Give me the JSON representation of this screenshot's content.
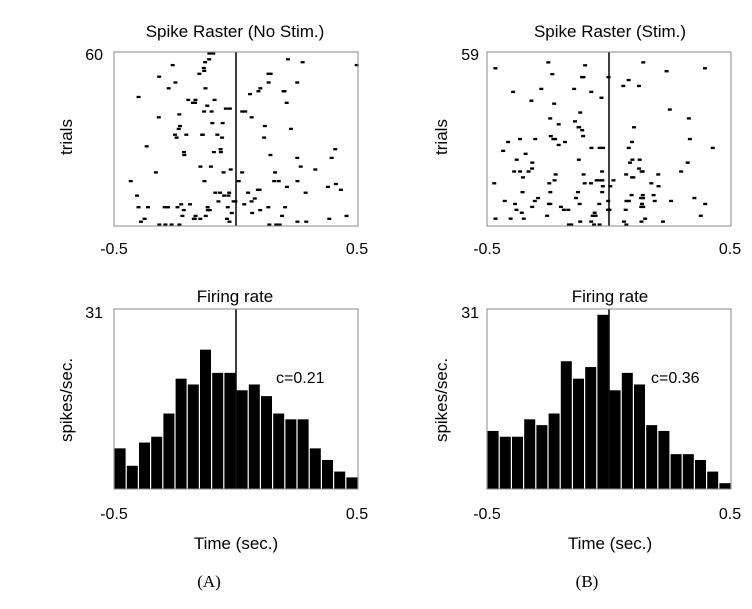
{
  "panels": [
    {
      "caption": "(A)",
      "raster": {
        "title": "Spike Raster (No Stim.)",
        "ylabel": "trials",
        "ymax_label": "60",
        "xmin_label": "-0.5",
        "xmax_label": "0.5",
        "trials": 60,
        "seed": 11,
        "marker_x": 0
      },
      "rate": {
        "title": "Firing rate",
        "ylabel": "spikes/sec.",
        "xlabel": "Time (sec.)",
        "ymax_label": "31",
        "xmin_label": "-0.5",
        "xmax_label": "0.5",
        "annotation": "c=0.21",
        "marker_x": 0
      }
    },
    {
      "caption": "(B)",
      "raster": {
        "title": "Spike Raster (Stim.)",
        "ylabel": "trials",
        "ymax_label": "59",
        "xmin_label": "-0.5",
        "xmax_label": "0.5",
        "trials": 59,
        "seed": 23,
        "marker_x": 0
      },
      "rate": {
        "title": "Firing rate",
        "ylabel": "spikes/sec.",
        "xlabel": "Time (sec.)",
        "ymax_label": "31",
        "xmin_label": "-0.5",
        "xmax_label": "0.5",
        "annotation": "c=0.36",
        "marker_x": 0
      }
    }
  ],
  "chart_data": [
    {
      "type": "scatter",
      "title": "Spike Raster (No Stim.)",
      "xlabel": "",
      "ylabel": "trials",
      "xlim": [
        -0.5,
        0.5
      ],
      "ylim": [
        0,
        60
      ],
      "xticks": [
        "-0.5",
        "0.5"
      ],
      "yticks": [
        "60"
      ]
    },
    {
      "type": "bar",
      "title": "Firing rate",
      "xlabel": "Time (sec.)",
      "ylabel": "spikes/sec.",
      "xlim": [
        -0.5,
        0.5
      ],
      "ylim": [
        0,
        31
      ],
      "bin_width": 0.05,
      "x": [
        -0.475,
        -0.425,
        -0.375,
        -0.325,
        -0.275,
        -0.225,
        -0.175,
        -0.125,
        -0.075,
        -0.025,
        0.025,
        0.075,
        0.125,
        0.175,
        0.225,
        0.275,
        0.325,
        0.375,
        0.425,
        0.475
      ],
      "values": [
        7,
        4,
        8,
        9,
        13,
        19,
        18,
        24,
        20,
        20,
        17,
        18,
        16,
        13,
        12,
        12,
        7,
        5,
        3,
        2
      ],
      "annotation": "c=0.21"
    },
    {
      "type": "scatter",
      "title": "Spike Raster (Stim.)",
      "xlabel": "",
      "ylabel": "trials",
      "xlim": [
        -0.5,
        0.5
      ],
      "ylim": [
        0,
        59
      ],
      "xticks": [
        "-0.5",
        "0.5"
      ],
      "yticks": [
        "59"
      ]
    },
    {
      "type": "bar",
      "title": "Firing rate",
      "xlabel": "Time (sec.)",
      "ylabel": "spikes/sec.",
      "xlim": [
        -0.5,
        0.5
      ],
      "ylim": [
        0,
        31
      ],
      "bin_width": 0.05,
      "x": [
        -0.475,
        -0.425,
        -0.375,
        -0.325,
        -0.275,
        -0.225,
        -0.175,
        -0.125,
        -0.075,
        -0.025,
        0.025,
        0.075,
        0.125,
        0.175,
        0.225,
        0.275,
        0.325,
        0.375,
        0.425,
        0.475
      ],
      "values": [
        10,
        9,
        9,
        12,
        11,
        13,
        22,
        19,
        21,
        30,
        17,
        20,
        18,
        11,
        10,
        6,
        6,
        5,
        3,
        1
      ],
      "annotation": "c=0.36"
    }
  ]
}
